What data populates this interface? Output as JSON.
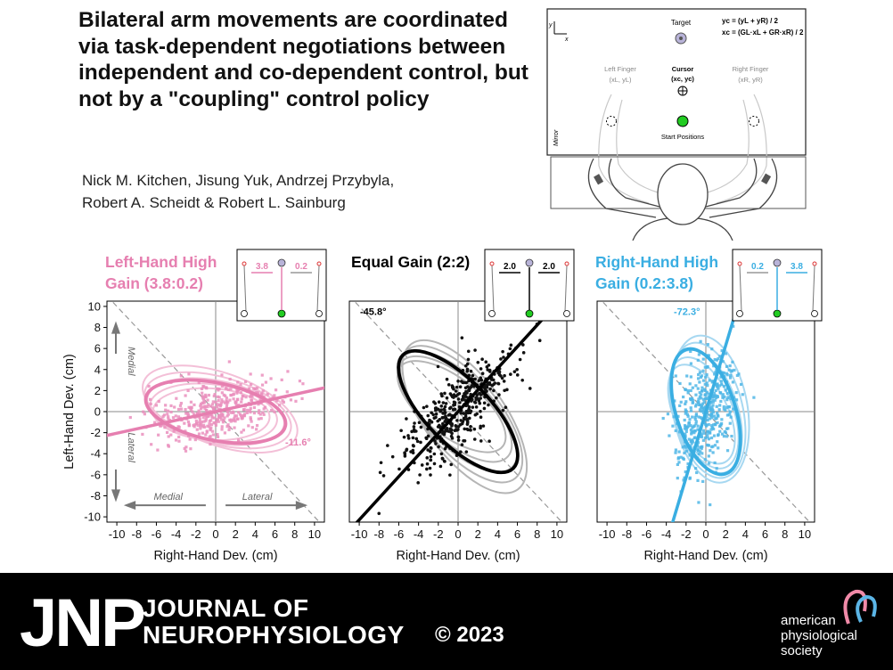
{
  "paper": {
    "title": "Bilateral arm movements are coordinated via task-dependent negotiations between independent and co-dependent control, but not by a \"coupling\" control policy",
    "authors_line1": "Nick M. Kitchen, Jisung Yuk, Andrzej Przybyla,",
    "authors_line2": "Robert A. Scheidt & Robert L. Sainburg"
  },
  "schematic": {
    "axis_x": "x",
    "axis_y": "y",
    "target_label": "Target",
    "eq_y": "yc = (yL + yR) / 2",
    "eq_x": "xc = (GL·xL + GR·xR) / 2",
    "left_finger": "Left Finger",
    "left_finger_coords": "(xL, yL)",
    "right_finger": "Right Finger",
    "right_finger_coords": "(xR, yR)",
    "cursor_label": "Cursor",
    "cursor_coords": "(xc, yc)",
    "start_label": "Start Positions",
    "mirror_label": "Mirror"
  },
  "colors": {
    "pink": "#e67fb0",
    "black": "#000000",
    "blue": "#3aaee2",
    "gray": "#aaaaaa"
  },
  "panels": [
    {
      "title_line1": "Left-Hand High",
      "title_line2": "Gain (3.8:0.2)",
      "color": "#e67fb0",
      "gain_left": "3.8",
      "gain_right": "0.2",
      "angle_label": "-11.6°",
      "medial_y": "Medial",
      "lateral_y": "Lateral",
      "medial_x": "Medial",
      "lateral_x": "Lateral"
    },
    {
      "title_line1": "Equal Gain (2:2)",
      "title_line2": "",
      "color": "#000000",
      "gain_left": "2.0",
      "gain_right": "2.0",
      "angle_label": "-45.8°"
    },
    {
      "title_line1": "Right-Hand High",
      "title_line2": "Gain (0.2:3.8)",
      "color": "#3aaee2",
      "gain_left": "0.2",
      "gain_right": "3.8",
      "angle_label": "-72.3°"
    }
  ],
  "chart_data": [
    {
      "type": "scatter",
      "title": "Left-Hand High Gain (3.8:0.2)",
      "xlabel": "Right-Hand Dev. (cm)",
      "ylabel": "Left-Hand Dev. (cm)",
      "xlim": [
        -11,
        11
      ],
      "ylim": [
        10.5,
        -10.5
      ],
      "x_ticks": [
        -10,
        -8,
        -6,
        -4,
        -2,
        0,
        2,
        4,
        6,
        8,
        10
      ],
      "y_ticks": [
        10,
        8,
        6,
        4,
        2,
        0,
        -2,
        -4,
        -6,
        -8,
        -10
      ],
      "fit_angle_deg": -11.6,
      "ellipse": {
        "cx": 0,
        "cy": 0,
        "semi_major": 7.2,
        "semi_minor": 2.9
      }
    },
    {
      "type": "scatter",
      "title": "Equal Gain (2:2)",
      "xlabel": "Right-Hand Dev. (cm)",
      "ylabel": "",
      "xlim": [
        -11,
        11
      ],
      "ylim": [
        10.5,
        -10.5
      ],
      "x_ticks": [
        -10,
        -8,
        -6,
        -4,
        -2,
        0,
        2,
        4,
        6,
        8,
        10
      ],
      "fit_angle_deg": -45.8,
      "ellipse": {
        "cx": 0,
        "cy": 0,
        "semi_major": 8.0,
        "semi_minor": 3.2
      }
    },
    {
      "type": "scatter",
      "title": "Right-Hand High Gain (0.2:3.8)",
      "xlabel": "Right-Hand Dev. (cm)",
      "ylabel": "",
      "xlim": [
        -11,
        11
      ],
      "ylim": [
        10.5,
        -10.5
      ],
      "x_ticks": [
        -10,
        -8,
        -6,
        -4,
        -2,
        0,
        2,
        4,
        6,
        8,
        10
      ],
      "fit_angle_deg": -72.3,
      "ellipse": {
        "cx": 0,
        "cy": 0,
        "semi_major": 6.6,
        "semi_minor": 3.0
      }
    }
  ],
  "footer": {
    "logo": "JNP",
    "journal_line1": "JOURNAL OF",
    "journal_line2": "NEUROPHYSIOLOGY",
    "copyright": "© 2023",
    "society_line1": "american",
    "society_line2": "physiological",
    "society_line3": "society"
  }
}
